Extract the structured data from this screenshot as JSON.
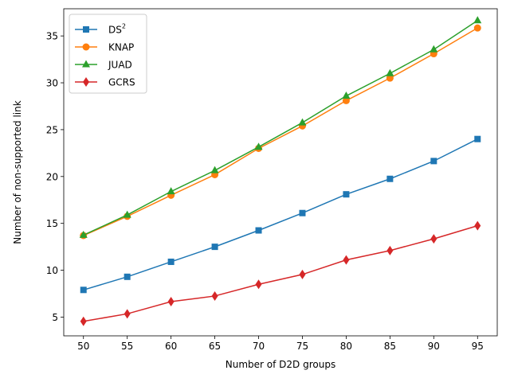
{
  "chart_data": {
    "type": "line",
    "xlabel": "Number of D2D groups",
    "ylabel": "Number of non-supported link",
    "x": [
      50,
      55,
      60,
      65,
      70,
      75,
      80,
      85,
      90,
      95
    ],
    "xlim": [
      47.75,
      97.25
    ],
    "ylim": [
      3.0,
      37.9
    ],
    "xticks": [
      50,
      55,
      60,
      65,
      70,
      75,
      80,
      85,
      90,
      95
    ],
    "yticks": [
      5,
      10,
      15,
      20,
      25,
      30,
      35
    ],
    "grid": false,
    "legend_position": "top-left",
    "series": [
      {
        "name": "DS",
        "superscript": "2",
        "color": "#1f77b4",
        "marker": "square",
        "values": [
          7.9,
          9.3,
          10.9,
          12.5,
          14.25,
          16.1,
          18.1,
          19.75,
          21.65,
          24.0
        ]
      },
      {
        "name": "KNAP",
        "color": "#ff7f0e",
        "marker": "circle",
        "values": [
          13.7,
          15.75,
          18.0,
          20.2,
          23.0,
          25.4,
          28.1,
          30.5,
          33.1,
          35.85
        ]
      },
      {
        "name": "JUAD",
        "color": "#2ca02c",
        "marker": "triangle",
        "values": [
          13.75,
          15.9,
          18.4,
          20.65,
          23.15,
          25.75,
          28.6,
          31.0,
          33.55,
          36.65
        ]
      },
      {
        "name": "GCRS",
        "color": "#d62728",
        "marker": "diamond",
        "values": [
          4.55,
          5.35,
          6.65,
          7.25,
          8.5,
          9.55,
          11.1,
          12.1,
          13.35,
          14.75
        ]
      }
    ]
  }
}
